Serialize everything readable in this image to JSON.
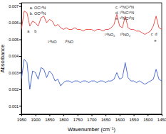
{
  "chart_data": {
    "type": "line",
    "xlabel": "Wavenumber (cm⁻¹)",
    "ylabel": "Absorbance",
    "x": [
      1950,
      1940,
      1930,
      1920,
      1910,
      1900,
      1890,
      1880,
      1870,
      1860,
      1850,
      1840,
      1830,
      1820,
      1810,
      1800,
      1790,
      1780,
      1770,
      1760,
      1750,
      1740,
      1730,
      1720,
      1710,
      1700,
      1690,
      1680,
      1670,
      1660,
      1650,
      1640,
      1630,
      1620,
      1610,
      1600,
      1590,
      1580,
      1570,
      1560,
      1550,
      1540,
      1530,
      1520,
      1510,
      1500,
      1490,
      1480,
      1470,
      1460,
      1450
    ],
    "series": [
      {
        "color": "#e8403a",
        "values": [
          0.0056,
          0.0067,
          0.0066,
          0.0058,
          0.0061,
          0.006,
          0.0058,
          0.0063,
          0.0064,
          0.006,
          0.0062,
          0.0061,
          0.0058,
          0.0059,
          0.0057,
          0.0056,
          0.0057,
          0.0056,
          0.0056,
          0.0057,
          0.0056,
          0.0056,
          0.0055,
          0.0056,
          0.0056,
          0.0056,
          0.0055,
          0.0056,
          0.0056,
          0.0055,
          0.0056,
          0.0056,
          0.0057,
          0.0059,
          0.0065,
          0.0058,
          0.0057,
          0.0064,
          0.0057,
          0.0056,
          0.0056,
          0.0055,
          0.0055,
          0.0054,
          0.0053,
          0.0054,
          0.0055,
          0.0058,
          0.0064,
          0.0057,
          0.0056
        ]
      },
      {
        "color": "#3a5fcd",
        "values": [
          0.0026,
          0.0038,
          0.0036,
          0.002,
          0.0031,
          0.003,
          0.0026,
          0.0033,
          0.0032,
          0.0027,
          0.0031,
          0.0029,
          0.0025,
          0.0026,
          0.0022,
          0.0024,
          0.0025,
          0.0025,
          0.0024,
          0.0025,
          0.0025,
          0.0024,
          0.0025,
          0.0025,
          0.0024,
          0.0025,
          0.0025,
          0.0024,
          0.0025,
          0.0025,
          0.0024,
          0.0025,
          0.0025,
          0.0026,
          0.003,
          0.0026,
          0.0027,
          0.0036,
          0.0027,
          0.0025,
          0.0025,
          0.0024,
          0.0025,
          0.0024,
          0.0023,
          0.0024,
          0.0025,
          0.0026,
          0.0032,
          0.0026,
          0.0025
        ]
      }
    ],
    "xlim": [
      1950,
      1450
    ],
    "xticks": [
      1950,
      1900,
      1850,
      1800,
      1750,
      1700,
      1650,
      1600,
      1550,
      1500,
      1450
    ],
    "ylim": [
      0.0005,
      0.0072
    ],
    "yticks": [
      0.001,
      0.002,
      0.003,
      0.004,
      0.005,
      0.006,
      0.007
    ],
    "annotations": [
      "a. OC¹⁴N",
      "b. OC¹⁵N",
      "c. ¹⁴NC¹⁴N",
      "d. ¹⁵NC¹⁴N",
      "e. ¹⁵NC¹⁵N",
      "a",
      "b",
      "¹⁴NO",
      "¹⁵NO",
      "¹⁴NO₂",
      "¹⁵NO₂",
      "c",
      "d",
      "e"
    ]
  }
}
